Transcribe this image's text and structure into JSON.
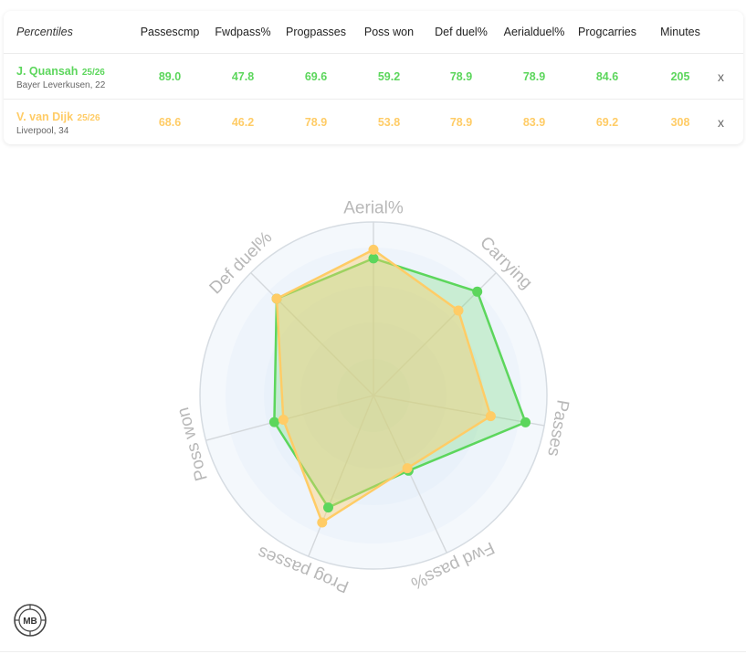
{
  "table": {
    "title": "Percentiles",
    "columns": [
      {
        "line1": "Passes",
        "line2": "cmp"
      },
      {
        "line1": "Fwd",
        "line2": "pass%"
      },
      {
        "line1": "Prog",
        "line2": "passes"
      },
      {
        "line1": "Poss won",
        "line2": ""
      },
      {
        "line1": "Def duel%",
        "line2": ""
      },
      {
        "line1": "Aerial",
        "line2": "duel%"
      },
      {
        "line1": "Prog",
        "line2": "carries"
      },
      {
        "line1": "Minutes",
        "line2": ""
      }
    ],
    "players": [
      {
        "name": "J. Quansah",
        "season": "25/26",
        "club": "Bayer Leverkusen, 22",
        "color": "#5cd65c",
        "values": [
          "89.0",
          "47.8",
          "69.6",
          "59.2",
          "78.9",
          "78.9",
          "84.6",
          "205"
        ],
        "remove_label": "x"
      },
      {
        "name": "V. van Dijk",
        "season": "25/26",
        "club": "Liverpool, 34",
        "color": "#ffcc66",
        "values": [
          "68.6",
          "46.2",
          "78.9",
          "53.8",
          "78.9",
          "83.9",
          "69.2",
          "308"
        ],
        "remove_label": "x"
      }
    ]
  },
  "chart_data": {
    "type": "radar",
    "axes": [
      "Aerial%",
      "Carrying",
      "Passes",
      "Fwd pass%",
      "Prog passes",
      "Poss won",
      "Def duel%"
    ],
    "range": [
      0,
      100
    ],
    "series": [
      {
        "name": "J. Quansah",
        "color": "#5cd65c",
        "values": [
          79,
          84.6,
          89,
          47.8,
          69.6,
          59.2,
          78.9
        ]
      },
      {
        "name": "V. van Dijk",
        "color": "#ffcc66",
        "values": [
          84,
          69.2,
          68.6,
          46.2,
          78.9,
          53.8,
          78.9
        ]
      }
    ]
  },
  "logo": {
    "text": "MB"
  }
}
